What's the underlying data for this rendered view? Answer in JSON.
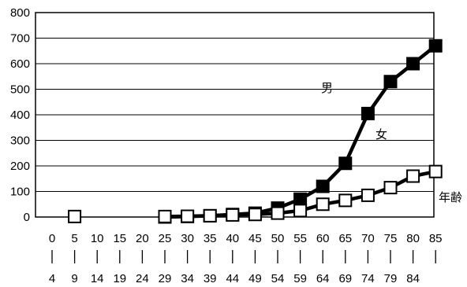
{
  "chart_data": {
    "type": "line",
    "title": "",
    "xlabel": "",
    "ylabel": "",
    "ylim": [
      0,
      800
    ],
    "yticks": [
      0,
      100,
      200,
      300,
      400,
      500,
      600,
      700,
      800
    ],
    "grid": "horizontal",
    "categories": [
      {
        "top": "0",
        "bottom": "4"
      },
      {
        "top": "5",
        "bottom": "9"
      },
      {
        "top": "10",
        "bottom": "14"
      },
      {
        "top": "15",
        "bottom": "19"
      },
      {
        "top": "20",
        "bottom": "24"
      },
      {
        "top": "25",
        "bottom": "29"
      },
      {
        "top": "30",
        "bottom": "34"
      },
      {
        "top": "35",
        "bottom": "39"
      },
      {
        "top": "40",
        "bottom": "44"
      },
      {
        "top": "45",
        "bottom": "49"
      },
      {
        "top": "50",
        "bottom": "54"
      },
      {
        "top": "55",
        "bottom": "59"
      },
      {
        "top": "60",
        "bottom": "64"
      },
      {
        "top": "65",
        "bottom": "69"
      },
      {
        "top": "70",
        "bottom": "74"
      },
      {
        "top": "75",
        "bottom": "79"
      },
      {
        "top": "80",
        "bottom": "84"
      },
      {
        "top": "85",
        "bottom": ""
      }
    ],
    "series": [
      {
        "name": "男",
        "marker": "filled-square",
        "color": "#000000",
        "values": [
          null,
          null,
          null,
          null,
          null,
          0,
          2,
          5,
          10,
          15,
          35,
          70,
          120,
          210,
          405,
          530,
          600,
          670
        ]
      },
      {
        "name": "女",
        "marker": "open-square",
        "color": "#000000",
        "values": [
          null,
          2,
          null,
          null,
          null,
          2,
          3,
          5,
          8,
          10,
          15,
          25,
          50,
          65,
          85,
          115,
          160,
          178
        ]
      }
    ],
    "annotations": {
      "x_axis_label": "年齢"
    }
  }
}
